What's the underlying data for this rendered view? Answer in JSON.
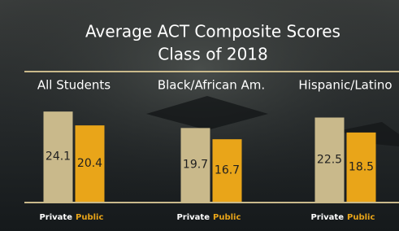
{
  "chart_data": {
    "type": "bar",
    "title": "Average ACT Composite Scores",
    "subtitle": "Class of 2018",
    "categories": [
      "All Students",
      "Black/African Am.",
      "Hispanic/Latino"
    ],
    "series": [
      {
        "name": "Private",
        "color": "#c9b98b",
        "values": [
          24.1,
          19.7,
          22.5
        ]
      },
      {
        "name": "Public",
        "color": "#e9a519",
        "values": [
          20.4,
          16.7,
          18.5
        ]
      }
    ]
  }
}
